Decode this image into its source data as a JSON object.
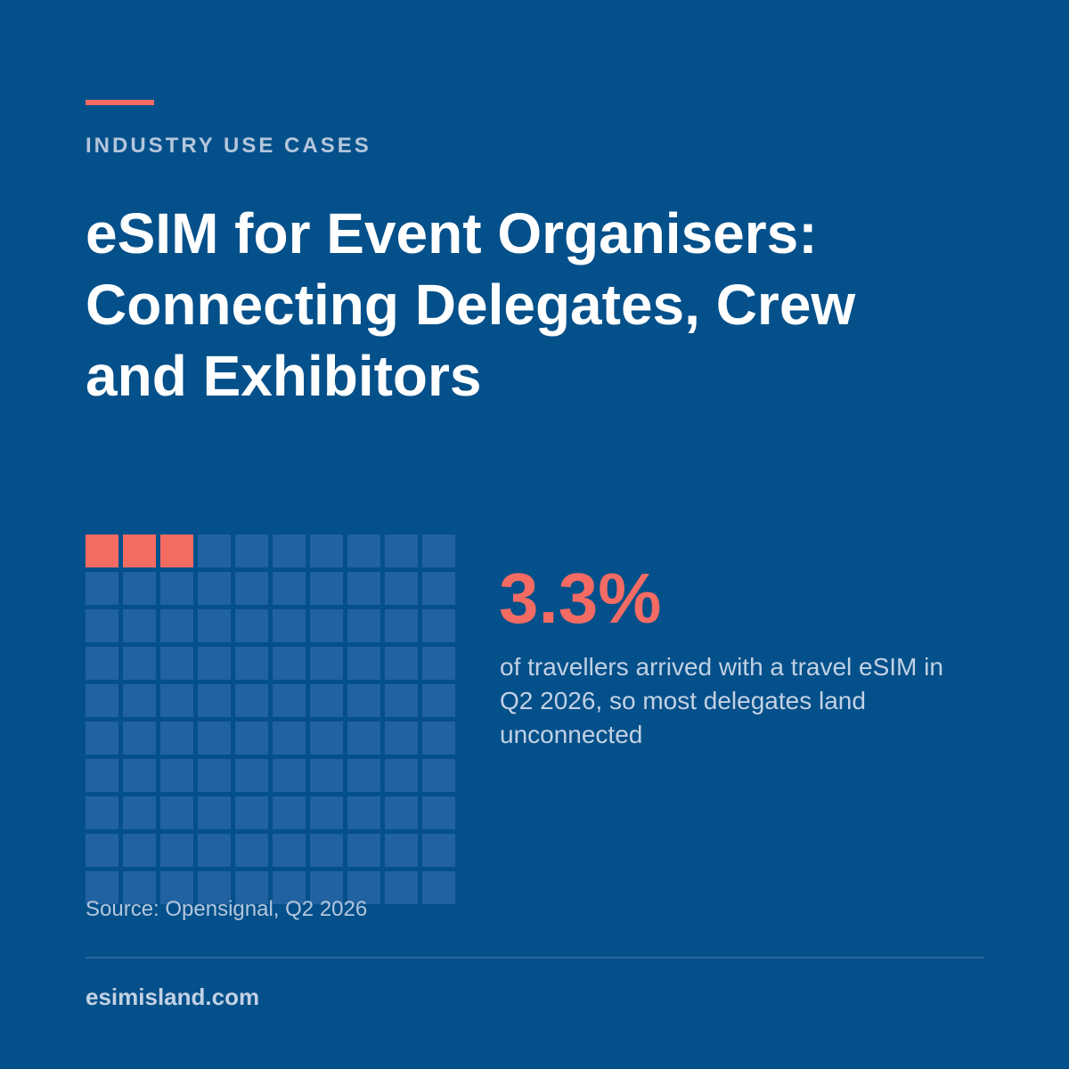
{
  "eyebrow": "INDUSTRY USE CASES",
  "title_lines": [
    "eSIM for Event Organisers:",
    "Connecting Delegates, Crew",
    "and Exhibitors"
  ],
  "stat": {
    "value": "3.3%",
    "caption": "of travellers arrived with a travel eSIM in Q2 2026, so most delegates land unconnected"
  },
  "waffle": {
    "rows": 10,
    "cols": 10,
    "filled_cells": 3
  },
  "source": "Source: Opensignal, Q2 2026",
  "site": "esimisland.com",
  "colors": {
    "background": "#04508a",
    "accent": "#f46b63",
    "empty_cell": "#2162a0",
    "title": "#ffffff",
    "muted_text": "#b4c6dc"
  }
}
